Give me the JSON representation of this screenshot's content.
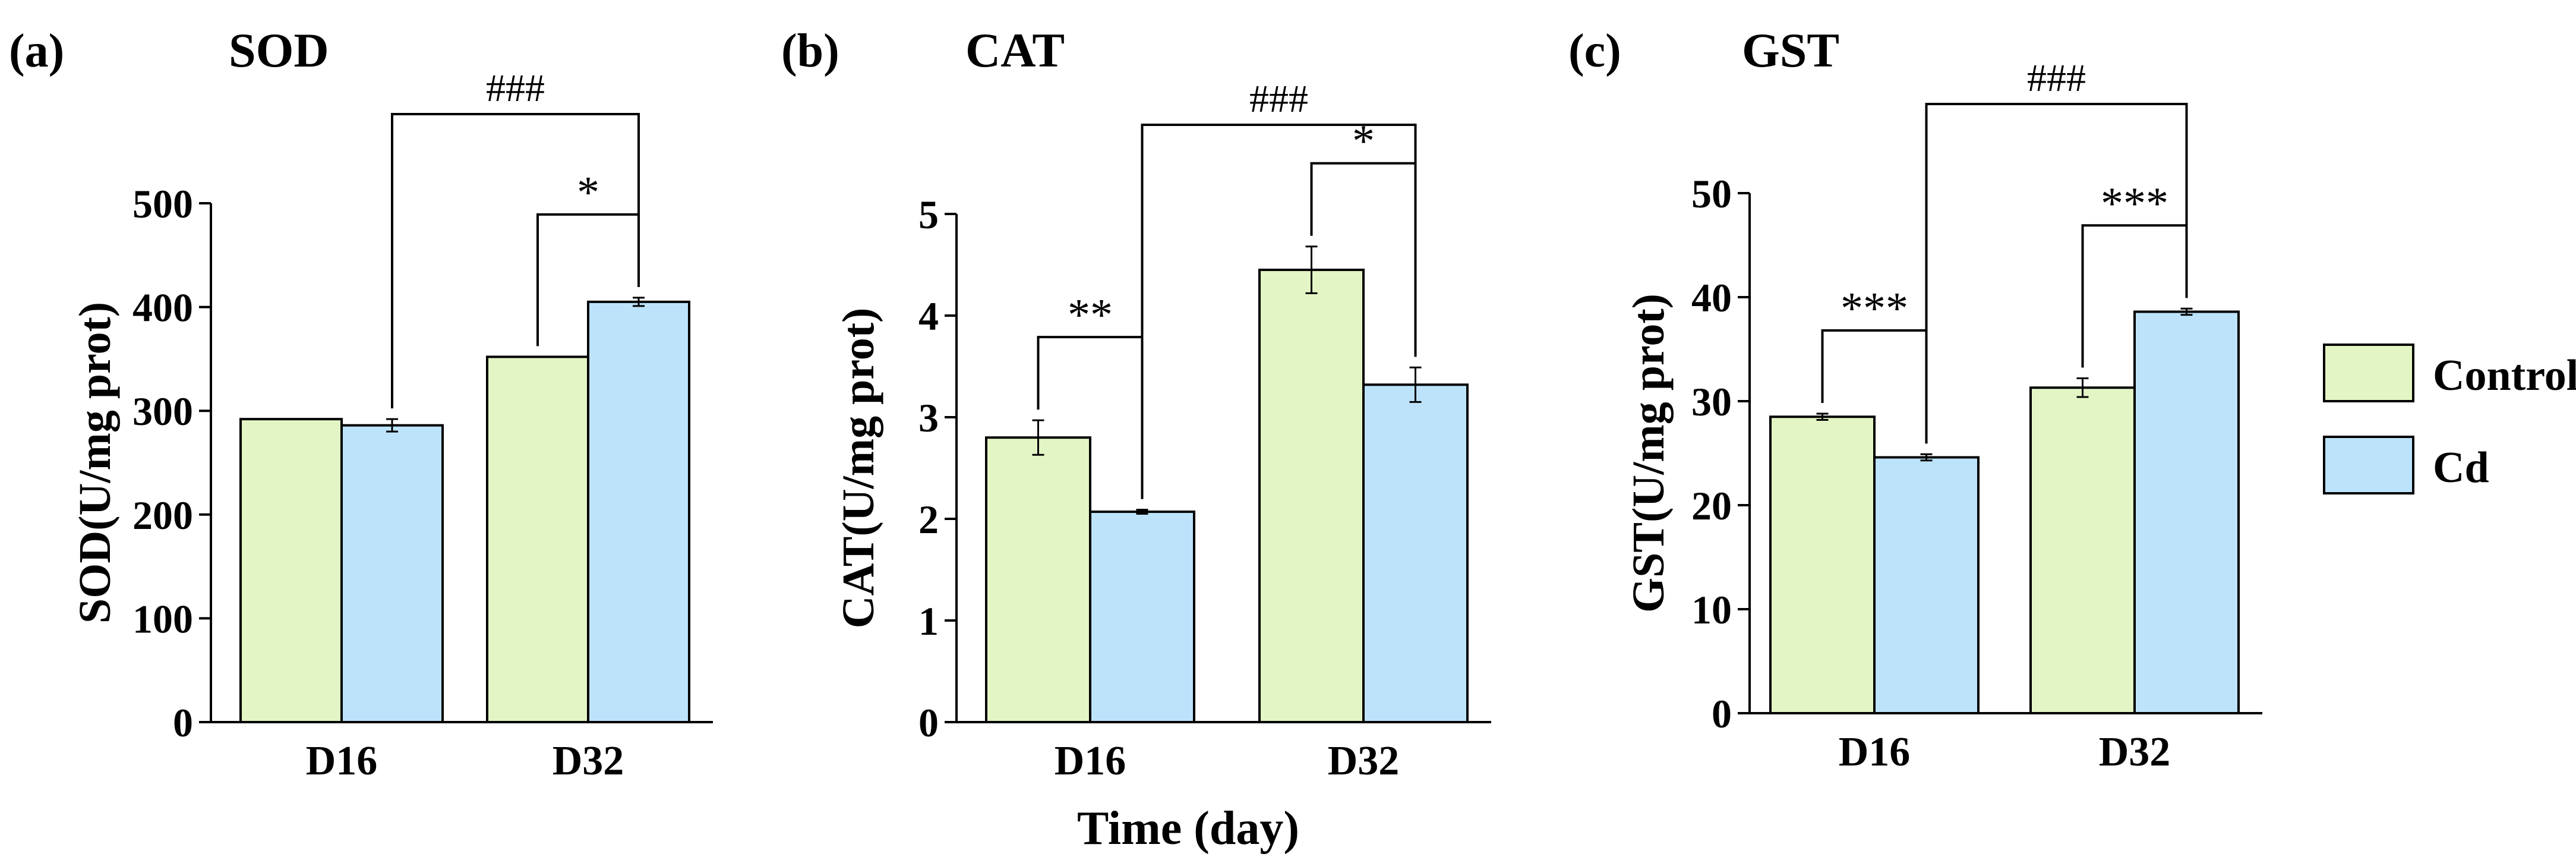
{
  "figure": {
    "x_title": "Time (day)",
    "legend": {
      "placement": "right",
      "entries": [
        {
          "name": "Control",
          "color": "#e3f5c4"
        },
        {
          "name": "Cd",
          "color": "#bde3fb"
        }
      ]
    }
  },
  "chart_data": [
    {
      "type": "bar",
      "panel_label": "(a)",
      "title": "SOD",
      "ylabel": "SOD(U/mg prot)",
      "xlabel": "",
      "categories": [
        "D16",
        "D32"
      ],
      "ylim": [
        0,
        500
      ],
      "yticks": [
        0,
        100,
        200,
        300,
        400,
        500
      ],
      "series": [
        {
          "name": "Control",
          "values": [
            292,
            352
          ],
          "errors": [
            0,
            0
          ],
          "color": "#e3f5c4"
        },
        {
          "name": "Cd",
          "values": [
            286,
            405
          ],
          "errors": [
            6,
            4
          ],
          "color": "#bde3fb"
        }
      ],
      "annotations": [
        {
          "label": "*",
          "from": [
            1,
            0
          ],
          "to": [
            1,
            1
          ],
          "level": 1
        },
        {
          "label": "###",
          "from": [
            0,
            1
          ],
          "to": [
            1,
            1
          ],
          "level": 2
        }
      ]
    },
    {
      "type": "bar",
      "panel_label": "(b)",
      "title": "CAT",
      "ylabel": "CAT(U/mg prot)",
      "xlabel": "Time (day)",
      "categories": [
        "D16",
        "D32"
      ],
      "ylim": [
        0,
        5
      ],
      "yticks": [
        0,
        1,
        2,
        3,
        4,
        5
      ],
      "series": [
        {
          "name": "Control",
          "values": [
            2.8,
            4.45
          ],
          "errors": [
            0.17,
            0.23
          ],
          "color": "#e3f5c4"
        },
        {
          "name": "Cd",
          "values": [
            2.07,
            3.32
          ],
          "errors": [
            0.02,
            0.17
          ],
          "color": "#bde3fb"
        }
      ],
      "annotations": [
        {
          "label": "**",
          "from": [
            0,
            0
          ],
          "to": [
            0,
            1
          ],
          "level": 1
        },
        {
          "label": "*",
          "from": [
            1,
            0
          ],
          "to": [
            1,
            1
          ],
          "level": 1
        },
        {
          "label": "###",
          "from": [
            0,
            1
          ],
          "to": [
            1,
            1
          ],
          "level": 2
        }
      ]
    },
    {
      "type": "bar",
      "panel_label": "(c)",
      "title": "GST",
      "ylabel": "GST(U/mg prot)",
      "xlabel": "",
      "categories": [
        "D16",
        "D32"
      ],
      "ylim": [
        0,
        50
      ],
      "yticks": [
        0,
        10,
        20,
        30,
        40,
        50
      ],
      "series": [
        {
          "name": "Control",
          "values": [
            28.5,
            31.3
          ],
          "errors": [
            0.3,
            0.9
          ],
          "color": "#e3f5c4"
        },
        {
          "name": "Cd",
          "values": [
            24.6,
            38.6
          ],
          "errors": [
            0.3,
            0.3
          ],
          "color": "#bde3fb"
        }
      ],
      "annotations": [
        {
          "label": "***",
          "from": [
            0,
            0
          ],
          "to": [
            0,
            1
          ],
          "level": 1
        },
        {
          "label": "***",
          "from": [
            1,
            0
          ],
          "to": [
            1,
            1
          ],
          "level": 1
        },
        {
          "label": "###",
          "from": [
            0,
            1
          ],
          "to": [
            1,
            1
          ],
          "level": 2
        }
      ]
    }
  ]
}
